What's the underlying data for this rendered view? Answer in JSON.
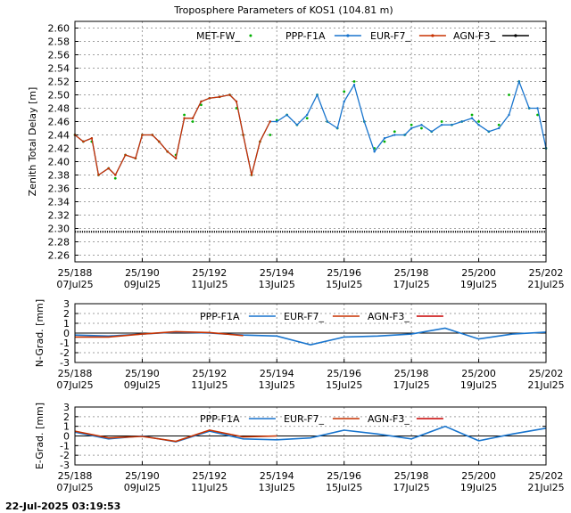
{
  "title": "Troposphere Parameters of KOS1 (104.81 m)",
  "timestamp": "22-Jul-2025 03:19:53",
  "colors": {
    "met": "#00b000",
    "ppp": "#1874cd",
    "eur": "#c83200",
    "agn": "#c80000",
    "black": "#000000"
  },
  "x_ticks": [
    {
      "doy": "25/188",
      "date": "07Jul25"
    },
    {
      "doy": "25/190",
      "date": "09Jul25"
    },
    {
      "doy": "25/192",
      "date": "11Jul25"
    },
    {
      "doy": "25/194",
      "date": "13Jul25"
    },
    {
      "doy": "25/196",
      "date": "15Jul25"
    },
    {
      "doy": "25/198",
      "date": "17Jul25"
    },
    {
      "doy": "25/200",
      "date": "19Jul25"
    },
    {
      "doy": "25/202",
      "date": "21Jul25"
    }
  ],
  "chart_data": [
    {
      "type": "line",
      "ylabel": "Zenith Total Delay [m]",
      "ylim": [
        2.25,
        2.61
      ],
      "xlim": [
        188,
        202
      ],
      "y_ticks": [
        "2.26",
        "2.28",
        "2.30",
        "2.32",
        "2.34",
        "2.36",
        "2.38",
        "2.40",
        "2.42",
        "2.44",
        "2.46",
        "2.48",
        "2.50",
        "2.52",
        "2.54",
        "2.56",
        "2.58",
        "2.60"
      ],
      "grid": true,
      "legend": "top",
      "series": [
        {
          "name": "MET-FW_",
          "style": "points",
          "color": "#00b000",
          "x": [
            188.0,
            188.25,
            188.5,
            188.7,
            189.0,
            189.2,
            189.5,
            189.8,
            190.0,
            190.3,
            190.5,
            190.75,
            191.0,
            191.25,
            191.5,
            191.75,
            192.0,
            192.3,
            192.6,
            192.8,
            193.0,
            193.25,
            193.5,
            193.8,
            194.0,
            194.3,
            194.6,
            194.9,
            195.2,
            195.5,
            195.8,
            196.0,
            196.3,
            196.6,
            196.9,
            197.2,
            197.5,
            197.8,
            198.0,
            198.3,
            198.6,
            198.9,
            199.2,
            199.5,
            199.8,
            200.0,
            200.3,
            200.6,
            200.9,
            201.2,
            201.5,
            201.75,
            202.0
          ],
          "y": [
            2.44,
            2.43,
            2.43,
            2.38,
            2.39,
            2.375,
            2.41,
            2.405,
            2.44,
            2.44,
            2.43,
            2.415,
            2.41,
            2.47,
            2.46,
            2.485,
            2.495,
            2.497,
            2.5,
            2.48,
            2.44,
            2.38,
            2.43,
            2.44,
            2.462,
            2.47,
            2.455,
            2.465,
            2.5,
            2.46,
            2.45,
            2.505,
            2.52,
            2.46,
            2.42,
            2.43,
            2.445,
            2.44,
            2.455,
            2.45,
            2.445,
            2.46,
            2.455,
            2.46,
            2.47,
            2.46,
            2.445,
            2.455,
            2.5,
            2.52,
            2.48,
            2.47,
            2.42
          ]
        },
        {
          "name": "PPP-F1A",
          "style": "line",
          "color": "#1874cd",
          "x": [
            188.0,
            188.25,
            188.5,
            188.7,
            189.0,
            189.2,
            189.5,
            189.8,
            190.0,
            190.3,
            190.5,
            190.75,
            191.0,
            191.25,
            191.5,
            191.75,
            192.0,
            192.3,
            192.6,
            192.8,
            193.0,
            193.25,
            193.5,
            193.8,
            194.0,
            194.3,
            194.6,
            194.9,
            195.2,
            195.5,
            195.8,
            196.0,
            196.3,
            196.6,
            196.9,
            197.2,
            197.5,
            197.8,
            198.0,
            198.3,
            198.6,
            198.9,
            199.2,
            199.5,
            199.8,
            200.0,
            200.3,
            200.6,
            200.9,
            201.2,
            201.5,
            201.75,
            202.0
          ],
          "y": [
            2.44,
            2.43,
            2.435,
            2.38,
            2.39,
            2.38,
            2.41,
            2.405,
            2.44,
            2.44,
            2.43,
            2.415,
            2.405,
            2.465,
            2.465,
            2.49,
            2.495,
            2.497,
            2.5,
            2.49,
            2.44,
            2.38,
            2.43,
            2.46,
            2.46,
            2.47,
            2.455,
            2.47,
            2.5,
            2.46,
            2.45,
            2.49,
            2.515,
            2.46,
            2.415,
            2.435,
            2.44,
            2.44,
            2.45,
            2.455,
            2.445,
            2.455,
            2.455,
            2.46,
            2.465,
            2.455,
            2.445,
            2.45,
            2.47,
            2.52,
            2.48,
            2.48,
            2.42
          ]
        },
        {
          "name": "EUR-F7_",
          "style": "line",
          "color": "#c83200",
          "x": [
            188.0,
            188.25,
            188.5,
            188.7,
            189.0,
            189.2,
            189.5,
            189.8,
            190.0,
            190.3,
            190.5,
            190.75,
            191.0,
            191.25,
            191.5,
            191.75,
            192.0,
            192.3,
            192.6,
            192.8,
            193.0,
            193.25,
            193.5,
            193.8
          ],
          "y": [
            2.44,
            2.43,
            2.435,
            2.38,
            2.39,
            2.38,
            2.41,
            2.405,
            2.44,
            2.44,
            2.43,
            2.415,
            2.405,
            2.465,
            2.465,
            2.49,
            2.495,
            2.497,
            2.5,
            2.49,
            2.44,
            2.38,
            2.43,
            2.46
          ]
        },
        {
          "name": "AGN-F3_",
          "style": "flat",
          "color": "#000000",
          "x": [
            188,
            202
          ],
          "y": [
            2.295,
            2.295
          ]
        }
      ]
    },
    {
      "type": "line",
      "ylabel": "N-Grad. [mm]",
      "ylim": [
        -3,
        3
      ],
      "xlim": [
        188,
        202
      ],
      "y_ticks": [
        "3",
        "2",
        "1",
        "0",
        "-1",
        "-2",
        "-3"
      ],
      "grid": true,
      "legend": "top",
      "series": [
        {
          "name": "PPP-F1A",
          "color": "#1874cd",
          "x": [
            188,
            189,
            190,
            191,
            192,
            193,
            194,
            195,
            196,
            197,
            198,
            199,
            200,
            201,
            202
          ],
          "y": [
            -0.2,
            -0.3,
            -0.1,
            0.1,
            0.0,
            -0.2,
            -0.3,
            -1.2,
            -0.4,
            -0.3,
            -0.1,
            0.5,
            -0.6,
            -0.1,
            0.1
          ]
        },
        {
          "name": "EUR-F7_",
          "color": "#c83200",
          "x": [
            188,
            189,
            190,
            191,
            192,
            193
          ],
          "y": [
            -0.4,
            -0.4,
            -0.1,
            0.15,
            0.05,
            -0.25
          ]
        },
        {
          "name": "AGN-F3_",
          "color": "#c80000",
          "x": [],
          "y": []
        }
      ]
    },
    {
      "type": "line",
      "ylabel": "E-Grad. [mm]",
      "ylim": [
        -3,
        3
      ],
      "xlim": [
        188,
        202
      ],
      "y_ticks": [
        "3",
        "2",
        "1",
        "0",
        "-1",
        "-2",
        "-3"
      ],
      "grid": true,
      "legend": "top",
      "series": [
        {
          "name": "PPP-F1A",
          "color": "#1874cd",
          "x": [
            188,
            189,
            190,
            191,
            192,
            193,
            194,
            195,
            196,
            197,
            198,
            199,
            200,
            201,
            202
          ],
          "y": [
            0.4,
            -0.3,
            0.0,
            -0.6,
            0.5,
            -0.3,
            -0.4,
            -0.2,
            0.6,
            0.2,
            -0.3,
            1.0,
            -0.5,
            0.2,
            0.8
          ]
        },
        {
          "name": "EUR-F7_",
          "color": "#c83200",
          "x": [
            188,
            189,
            190,
            191,
            192,
            193,
            194
          ],
          "y": [
            0.5,
            -0.2,
            -0.05,
            -0.55,
            0.6,
            -0.1,
            0.0
          ]
        },
        {
          "name": "AGN-F3_",
          "color": "#c80000",
          "x": [],
          "y": []
        }
      ]
    }
  ]
}
